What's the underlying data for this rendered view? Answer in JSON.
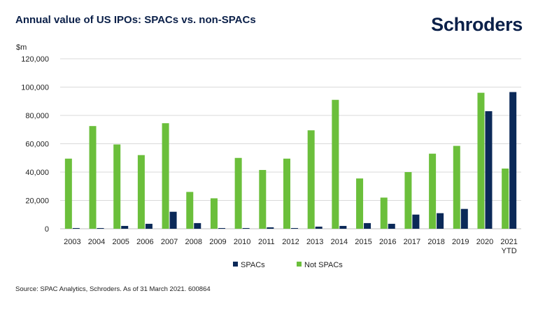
{
  "header": {
    "title": "Annual value of US IPOs: SPACs vs. non-SPACs",
    "logo_text": "Schroders"
  },
  "footer": {
    "source": "Source: SPAC Analytics, Schroders. As of 31 March 2021. 600864"
  },
  "colors": {
    "spacs": "#0b2958",
    "not_spacs": "#6bbf3b",
    "brand": "#0b2049",
    "grid": "#d9d9d9"
  },
  "chart_data": {
    "type": "bar",
    "unit_label": "$m",
    "categories": [
      "2003",
      "2004",
      "2005",
      "2006",
      "2007",
      "2008",
      "2009",
      "2010",
      "2011",
      "2012",
      "2013",
      "2014",
      "2015",
      "2016",
      "2017",
      "2018",
      "2019",
      "2020",
      "2021 YTD"
    ],
    "series": [
      {
        "name": "Not SPACs",
        "values": [
          49500,
          72500,
          59500,
          52000,
          74500,
          26000,
          21500,
          50000,
          41500,
          49500,
          69500,
          91000,
          35500,
          22000,
          40000,
          53000,
          58500,
          96000,
          42500
        ]
      },
      {
        "name": "SPACs",
        "values": [
          500,
          500,
          2000,
          3500,
          12000,
          4000,
          500,
          500,
          1000,
          500,
          1500,
          2000,
          4000,
          3500,
          10000,
          11000,
          14000,
          83000,
          96500
        ]
      }
    ],
    "y_ticks": [
      "0",
      "20,000",
      "40,000",
      "60,000",
      "80,000",
      "100,000",
      "120,000"
    ],
    "legend": [
      "SPACs",
      "Not SPACs"
    ],
    "ylim": [
      0,
      120000
    ],
    "grid": true,
    "legend_position": "bottom-center"
  }
}
